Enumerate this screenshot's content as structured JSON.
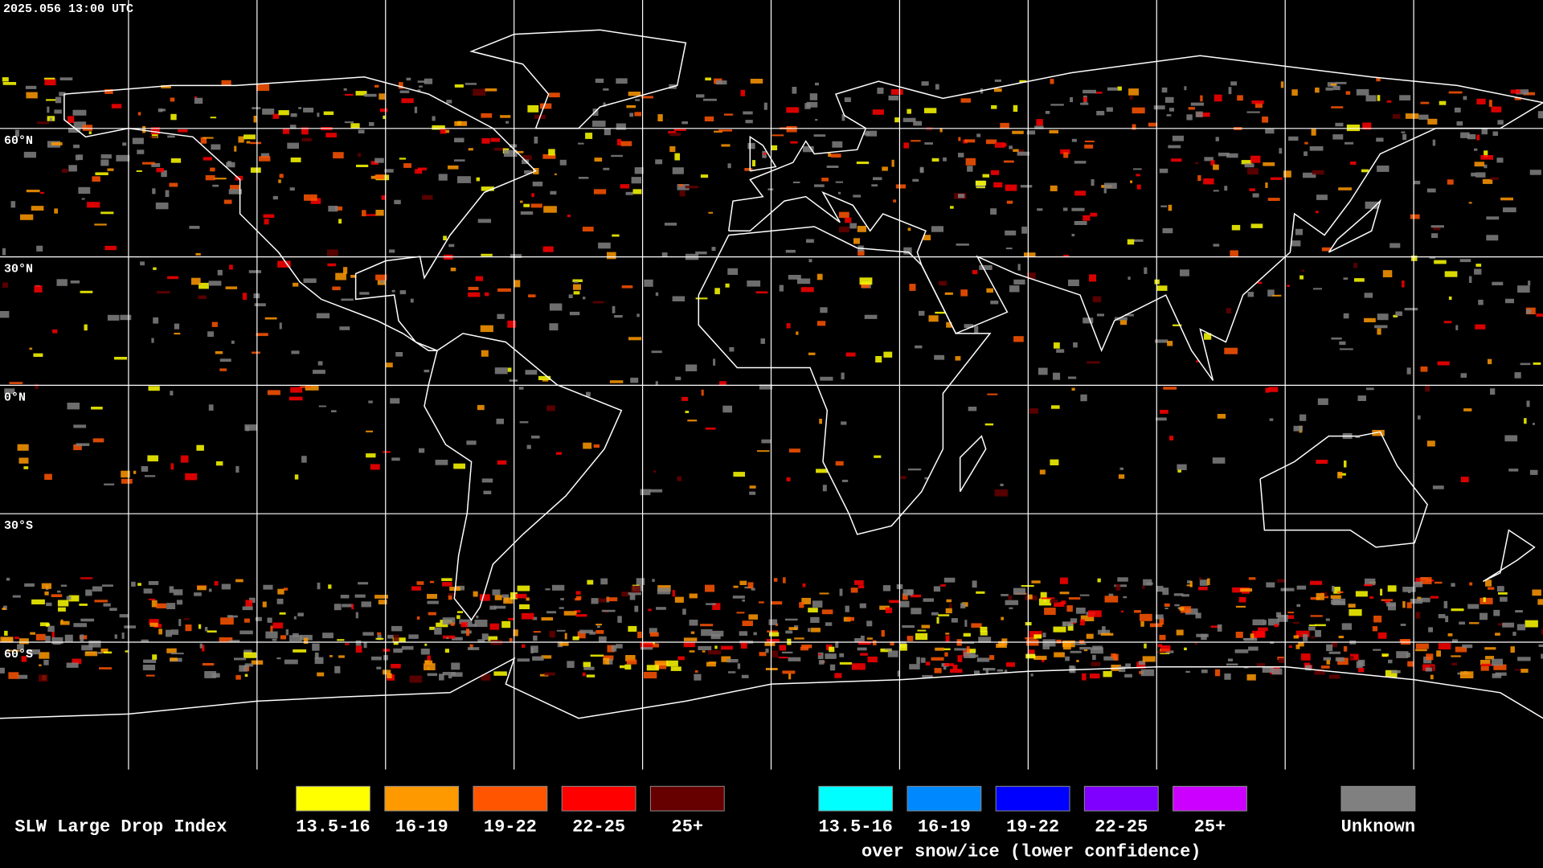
{
  "header": {
    "timestamp": "2025.056 13:00 UTC"
  },
  "map": {
    "latitude_labels": [
      "60°N",
      "30°N",
      "0°N",
      "30°S",
      "60°S"
    ]
  },
  "legend": {
    "title": "SLW Large Drop Index",
    "items": [
      {
        "label": "13.5-16",
        "color": "#ffff00"
      },
      {
        "label": "16-19",
        "color": "#ff9900"
      },
      {
        "label": "19-22",
        "color": "#ff5500"
      },
      {
        "label": "22-25",
        "color": "#ff0000"
      },
      {
        "label": "25+",
        "color": "#660000"
      }
    ],
    "snow_items": [
      {
        "label": "13.5-16",
        "color": "#00ffff"
      },
      {
        "label": "16-19",
        "color": "#0088ff"
      },
      {
        "label": "19-22",
        "color": "#0000ff"
      },
      {
        "label": "22-25",
        "color": "#7f00ff"
      },
      {
        "label": "25+",
        "color": "#cc00ff"
      }
    ],
    "snow_caption": "over snow/ice (lower confidence)",
    "unknown": {
      "label": "Unknown",
      "color": "#808080"
    }
  }
}
